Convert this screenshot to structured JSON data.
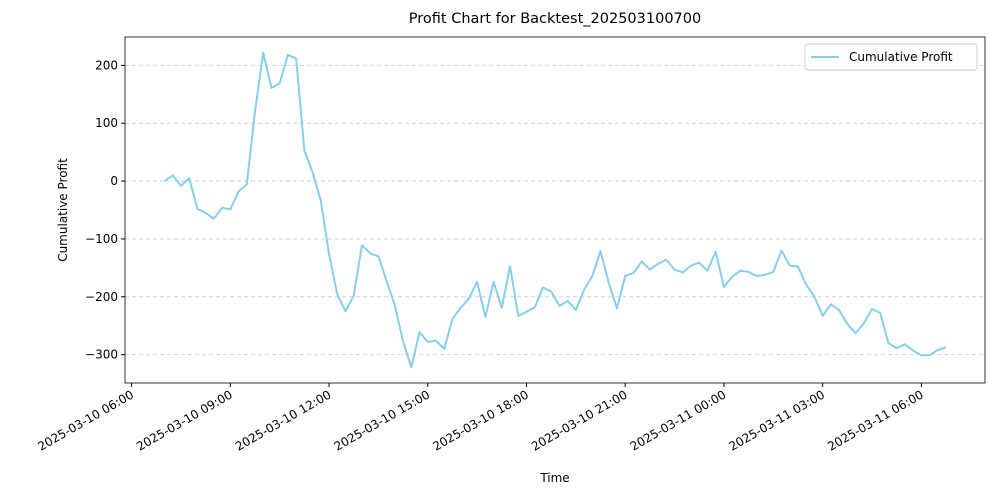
{
  "chart_data": {
    "type": "line",
    "title": "Profit Chart for Backtest_202503100700",
    "xlabel": "Time",
    "ylabel": "Cumulative Profit",
    "x": [
      "2025-03-10 07:00",
      "2025-03-10 07:15",
      "2025-03-10 07:30",
      "2025-03-10 07:45",
      "2025-03-10 08:00",
      "2025-03-10 08:15",
      "2025-03-10 08:30",
      "2025-03-10 08:45",
      "2025-03-10 09:00",
      "2025-03-10 09:15",
      "2025-03-10 09:30",
      "2025-03-10 09:45",
      "2025-03-10 10:00",
      "2025-03-10 10:15",
      "2025-03-10 10:30",
      "2025-03-10 10:45",
      "2025-03-10 11:00",
      "2025-03-10 11:15",
      "2025-03-10 11:30",
      "2025-03-10 11:45",
      "2025-03-10 12:00",
      "2025-03-10 12:15",
      "2025-03-10 12:30",
      "2025-03-10 12:45",
      "2025-03-10 13:00",
      "2025-03-10 13:15",
      "2025-03-10 13:30",
      "2025-03-10 13:45",
      "2025-03-10 14:00",
      "2025-03-10 14:15",
      "2025-03-10 14:30",
      "2025-03-10 14:45",
      "2025-03-10 15:00",
      "2025-03-10 15:15",
      "2025-03-10 15:30",
      "2025-03-10 15:45",
      "2025-03-10 16:00",
      "2025-03-10 16:15",
      "2025-03-10 16:30",
      "2025-03-10 16:45",
      "2025-03-10 17:00",
      "2025-03-10 17:15",
      "2025-03-10 17:30",
      "2025-03-10 17:45",
      "2025-03-10 18:00",
      "2025-03-10 18:15",
      "2025-03-10 18:30",
      "2025-03-10 18:45",
      "2025-03-10 19:00",
      "2025-03-10 19:15",
      "2025-03-10 19:30",
      "2025-03-10 19:45",
      "2025-03-10 20:00",
      "2025-03-10 20:15",
      "2025-03-10 20:30",
      "2025-03-10 20:45",
      "2025-03-10 21:00",
      "2025-03-10 21:15",
      "2025-03-10 21:30",
      "2025-03-10 21:45",
      "2025-03-10 22:00",
      "2025-03-10 22:15",
      "2025-03-10 22:30",
      "2025-03-10 22:45",
      "2025-03-10 23:00",
      "2025-03-10 23:15",
      "2025-03-10 23:30",
      "2025-03-10 23:45",
      "2025-03-11 00:00",
      "2025-03-11 00:15",
      "2025-03-11 00:30",
      "2025-03-11 00:45",
      "2025-03-11 01:00",
      "2025-03-11 01:15",
      "2025-03-11 01:30",
      "2025-03-11 01:45",
      "2025-03-11 02:00",
      "2025-03-11 02:15",
      "2025-03-11 02:30",
      "2025-03-11 02:45",
      "2025-03-11 03:00",
      "2025-03-11 03:15",
      "2025-03-11 03:30",
      "2025-03-11 03:45",
      "2025-03-11 04:00",
      "2025-03-11 04:15",
      "2025-03-11 04:30",
      "2025-03-11 04:45",
      "2025-03-11 05:00",
      "2025-03-11 05:15",
      "2025-03-11 05:30",
      "2025-03-11 05:45",
      "2025-03-11 06:00",
      "2025-03-11 06:15",
      "2025-03-11 06:30",
      "2025-03-11 06:45"
    ],
    "series": [
      {
        "name": "Cumulative Profit",
        "color": "#87ceeb",
        "values": [
          0,
          10,
          -8,
          5,
          -48,
          -55,
          -65,
          -46,
          -49,
          -18,
          -6,
          120,
          222,
          161,
          169,
          218,
          212,
          53,
          15,
          -34,
          -126,
          -196,
          -225,
          -198,
          -111,
          -125,
          -130,
          -173,
          -215,
          -277,
          -322,
          -261,
          -278,
          -276,
          -290,
          -238,
          -219,
          -203,
          -174,
          -235,
          -174,
          -219,
          -147,
          -233,
          -226,
          -218,
          -184,
          -191,
          -216,
          -207,
          -223,
          -188,
          -164,
          -121,
          -176,
          -220,
          -164,
          -159,
          -139,
          -153,
          -143,
          -136,
          -153,
          -158,
          -146,
          -141,
          -155,
          -122,
          -183,
          -165,
          -155,
          -157,
          -164,
          -162,
          -157,
          -120,
          -146,
          -148,
          -179,
          -200,
          -233,
          -213,
          -223,
          -247,
          -263,
          -246,
          -221,
          -228,
          -280,
          -289,
          -282,
          -293,
          -301,
          -301,
          -292,
          -287
        ]
      }
    ],
    "xlim": [
      "2025-03-10 05:48",
      "2025-03-11 07:56"
    ],
    "xticks": [
      "2025-03-10 06:00",
      "2025-03-10 09:00",
      "2025-03-10 12:00",
      "2025-03-10 15:00",
      "2025-03-10 18:00",
      "2025-03-10 21:00",
      "2025-03-11 00:00",
      "2025-03-11 03:00",
      "2025-03-11 06:00"
    ],
    "ylim": [
      -349,
      249
    ],
    "yticks": [
      {
        "value": -300,
        "label": "−300"
      },
      {
        "value": -200,
        "label": "−200"
      },
      {
        "value": -100,
        "label": "−100"
      },
      0,
      100,
      200
    ],
    "grid": true,
    "legend": "upper right"
  }
}
